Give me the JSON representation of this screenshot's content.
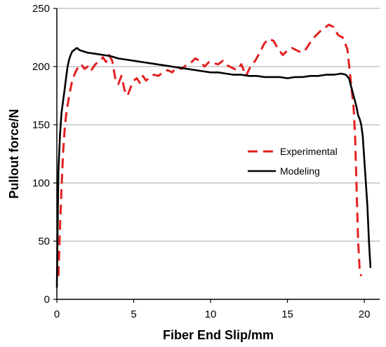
{
  "chart_data": {
    "type": "line",
    "title": "",
    "xlabel": "Fiber End Slip/mm",
    "ylabel": "Pullout force/N",
    "xlim": [
      0,
      21
    ],
    "ylim": [
      0,
      250
    ],
    "xticks": [
      0,
      5,
      10,
      15,
      20
    ],
    "yticks": [
      0,
      50,
      100,
      150,
      200,
      250
    ],
    "grid": "horizontal",
    "legend_position": "right-middle",
    "series": [
      {
        "name": "Experimental",
        "color": "#e32020",
        "style": "dashed",
        "x": [
          0.1,
          0.2,
          0.3,
          0.4,
          0.5,
          0.6,
          0.8,
          1.0,
          1.2,
          1.4,
          1.6,
          1.8,
          2.0,
          2.2,
          2.5,
          2.8,
          3.0,
          3.2,
          3.4,
          3.6,
          3.8,
          4.0,
          4.2,
          4.4,
          4.6,
          4.8,
          5.0,
          5.2,
          5.4,
          5.6,
          5.8,
          6.0,
          6.3,
          6.6,
          6.9,
          7.2,
          7.5,
          7.8,
          8.1,
          8.4,
          8.7,
          9.0,
          9.3,
          9.6,
          9.9,
          10.2,
          10.5,
          10.8,
          11.1,
          11.4,
          11.7,
          12.0,
          12.3,
          12.6,
          12.9,
          13.2,
          13.5,
          13.8,
          14.1,
          14.4,
          14.7,
          15.0,
          15.3,
          15.6,
          15.9,
          16.2,
          16.5,
          16.8,
          17.1,
          17.4,
          17.7,
          18.0,
          18.3,
          18.6,
          18.9,
          19.1,
          19.3,
          19.4,
          19.5,
          19.6,
          19.7,
          19.8
        ],
        "y": [
          20,
          60,
          95,
          125,
          145,
          158,
          175,
          188,
          195,
          200,
          202,
          198,
          200,
          196,
          202,
          205,
          208,
          204,
          210,
          205,
          190,
          185,
          192,
          180,
          175,
          182,
          188,
          190,
          186,
          192,
          188,
          190,
          193,
          192,
          195,
          197,
          195,
          200,
          198,
          201,
          203,
          207,
          205,
          200,
          204,
          203,
          202,
          205,
          201,
          199,
          197,
          202,
          192,
          200,
          205,
          212,
          220,
          224,
          222,
          215,
          210,
          214,
          216,
          214,
          212,
          215,
          221,
          226,
          230,
          233,
          236,
          234,
          227,
          225,
          215,
          190,
          165,
          140,
          95,
          50,
          25,
          20
        ]
      },
      {
        "name": "Modeling",
        "color": "#000000",
        "style": "solid",
        "x": [
          0.0,
          0.05,
          0.1,
          0.2,
          0.3,
          0.4,
          0.5,
          0.6,
          0.7,
          0.8,
          0.9,
          1.0,
          1.1,
          1.2,
          1.3,
          1.5,
          2.0,
          2.5,
          3.0,
          3.5,
          4.0,
          4.5,
          5.0,
          5.5,
          6.0,
          6.5,
          7.0,
          7.5,
          8.0,
          8.5,
          9.0,
          9.5,
          10.0,
          10.5,
          11.0,
          11.5,
          12.0,
          12.5,
          13.0,
          13.5,
          14.0,
          14.5,
          15.0,
          15.5,
          16.0,
          16.5,
          17.0,
          17.5,
          18.0,
          18.5,
          18.8,
          19.0,
          19.1,
          19.2,
          19.3,
          19.4,
          19.5,
          19.6,
          19.7,
          19.8,
          19.9,
          20.0,
          20.1,
          20.2,
          20.3,
          20.4
        ],
        "y": [
          10,
          60,
          110,
          140,
          160,
          170,
          180,
          190,
          200,
          206,
          210,
          213,
          214,
          215,
          216,
          214,
          212,
          211,
          210,
          209,
          207,
          206,
          205,
          204,
          203,
          202,
          201,
          200,
          199,
          198,
          197,
          196,
          195,
          195,
          194,
          193,
          193,
          192,
          192,
          191,
          191,
          191,
          190,
          191,
          191,
          192,
          192,
          193,
          193,
          194,
          193,
          190,
          185,
          180,
          175,
          170,
          165,
          158,
          155,
          150,
          140,
          120,
          100,
          80,
          50,
          27
        ]
      }
    ],
    "axis_color": "#000000",
    "grid_color": "#a6a6a6"
  }
}
